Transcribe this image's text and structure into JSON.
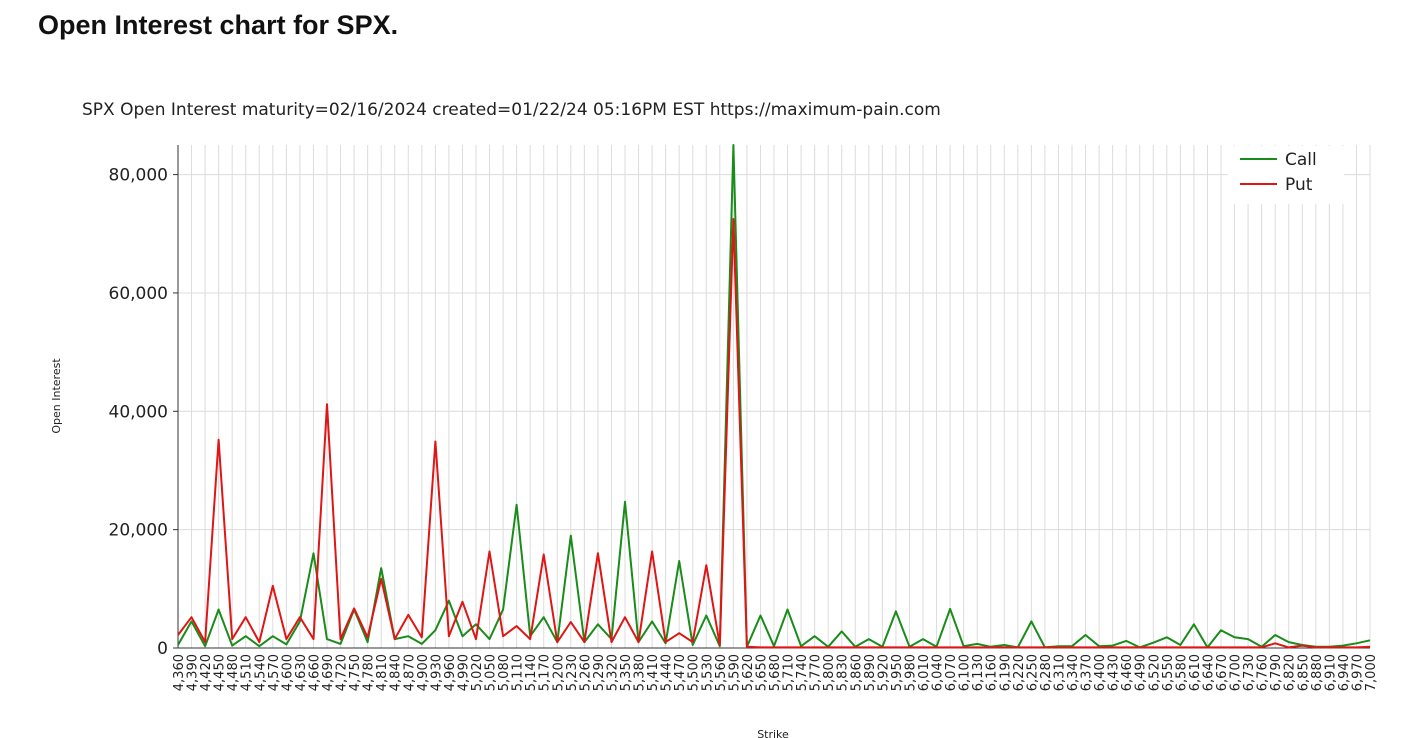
{
  "page": {
    "heading": "Open Interest chart for SPX."
  },
  "chart_data": {
    "type": "line",
    "title": "SPX Open Interest maturity=02/16/2024 created=01/22/24 05:16PM EST https://maximum-pain.com",
    "xlabel": "Strike",
    "ylabel": "Open Interest",
    "ylim": [
      0,
      85000
    ],
    "y_ticks": [
      "0",
      "20,000",
      "40,000",
      "60,000",
      "80,000"
    ],
    "y_tick_values": [
      0,
      20000,
      40000,
      60000,
      80000
    ],
    "grid": true,
    "legend_position": "top-right",
    "x_ticks": [
      "4,360",
      "4,390",
      "4,420",
      "4,450",
      "4,480",
      "4,510",
      "4,540",
      "4,570",
      "4,600",
      "4,630",
      "4,660",
      "4,690",
      "4,720",
      "4,750",
      "4,780",
      "4,810",
      "4,840",
      "4,870",
      "4,900",
      "4,930",
      "4,960",
      "4,990",
      "5,020",
      "5,050",
      "5,080",
      "5,110",
      "5,140",
      "5,170",
      "5,200",
      "5,230",
      "5,260",
      "5,290",
      "5,320",
      "5,350",
      "5,380",
      "5,410",
      "5,440",
      "5,470",
      "5,500",
      "5,530",
      "5,560",
      "5,590",
      "5,620",
      "5,650",
      "5,680",
      "5,710",
      "5,740",
      "5,770",
      "5,800",
      "5,830",
      "5,860",
      "5,890",
      "5,920",
      "5,950",
      "5,980",
      "6,010",
      "6,040",
      "6,070",
      "6,100",
      "6,130",
      "6,160",
      "6,190",
      "6,220",
      "6,250",
      "6,280",
      "6,310",
      "6,340",
      "6,370",
      "6,400",
      "6,430",
      "6,460",
      "6,490",
      "6,520",
      "6,550",
      "6,580",
      "6,610",
      "6,640",
      "6,670",
      "6,700",
      "6,730",
      "6,760",
      "6,790",
      "6,820",
      "6,850",
      "6,880",
      "6,910",
      "6,940",
      "6,970",
      "7,000"
    ],
    "series": [
      {
        "name": "Call",
        "color": "#1a8c1a",
        "points": [
          [
            0,
            500
          ],
          [
            1,
            4500
          ],
          [
            2,
            300
          ],
          [
            3,
            6500
          ],
          [
            4,
            400
          ],
          [
            5,
            2000
          ],
          [
            6,
            300
          ],
          [
            7,
            2000
          ],
          [
            8,
            600
          ],
          [
            9,
            4500
          ],
          [
            10,
            16000
          ],
          [
            11,
            1500
          ],
          [
            12,
            700
          ],
          [
            13,
            6500
          ],
          [
            14,
            1000
          ],
          [
            15,
            13500
          ],
          [
            16,
            1500
          ],
          [
            17,
            2000
          ],
          [
            18,
            700
          ],
          [
            19,
            3000
          ],
          [
            20,
            8000
          ],
          [
            21,
            2000
          ],
          [
            22,
            4000
          ],
          [
            23,
            1500
          ],
          [
            24,
            6500
          ],
          [
            25,
            24200
          ],
          [
            26,
            2000
          ],
          [
            27,
            5200
          ],
          [
            28,
            1000
          ],
          [
            29,
            19000
          ],
          [
            30,
            1000
          ],
          [
            31,
            4000
          ],
          [
            32,
            1500
          ],
          [
            33,
            24700
          ],
          [
            34,
            1000
          ],
          [
            35,
            4500
          ],
          [
            36,
            800
          ],
          [
            37,
            14700
          ],
          [
            38,
            500
          ],
          [
            39,
            5500
          ],
          [
            40,
            300
          ],
          [
            41,
            85000
          ],
          [
            42,
            200
          ],
          [
            43,
            5500
          ],
          [
            44,
            300
          ],
          [
            45,
            6500
          ],
          [
            46,
            300
          ],
          [
            47,
            2000
          ],
          [
            48,
            200
          ],
          [
            49,
            2800
          ],
          [
            50,
            200
          ],
          [
            51,
            1500
          ],
          [
            52,
            200
          ],
          [
            53,
            6200
          ],
          [
            54,
            200
          ],
          [
            55,
            1500
          ],
          [
            56,
            200
          ],
          [
            57,
            6600
          ],
          [
            58,
            300
          ],
          [
            59,
            700
          ],
          [
            60,
            200
          ],
          [
            61,
            500
          ],
          [
            62,
            100
          ],
          [
            63,
            4500
          ],
          [
            64,
            100
          ],
          [
            65,
            300
          ],
          [
            66,
            300
          ],
          [
            67,
            2200
          ],
          [
            68,
            300
          ],
          [
            69,
            400
          ],
          [
            70,
            1200
          ],
          [
            71,
            100
          ],
          [
            72,
            900
          ],
          [
            73,
            1800
          ],
          [
            74,
            500
          ],
          [
            75,
            4000
          ],
          [
            76,
            100
          ],
          [
            77,
            3000
          ],
          [
            78,
            1800
          ],
          [
            79,
            1500
          ],
          [
            80,
            200
          ],
          [
            81,
            2200
          ],
          [
            82,
            1000
          ],
          [
            83,
            500
          ],
          [
            84,
            200
          ],
          [
            85,
            200
          ],
          [
            86,
            400
          ],
          [
            87,
            800
          ],
          [
            88,
            1300
          ]
        ]
      },
      {
        "name": "Put",
        "color": "#e01515",
        "points": [
          [
            0,
            2200
          ],
          [
            1,
            5200
          ],
          [
            2,
            1000
          ],
          [
            3,
            35200
          ],
          [
            4,
            1500
          ],
          [
            5,
            5200
          ],
          [
            6,
            1000
          ],
          [
            7,
            10500
          ],
          [
            8,
            1500
          ],
          [
            9,
            5200
          ],
          [
            10,
            1500
          ],
          [
            11,
            41200
          ],
          [
            12,
            1500
          ],
          [
            13,
            6700
          ],
          [
            14,
            1800
          ],
          [
            15,
            11700
          ],
          [
            16,
            1500
          ],
          [
            17,
            5600
          ],
          [
            18,
            1800
          ],
          [
            19,
            34900
          ],
          [
            20,
            2000
          ],
          [
            21,
            7800
          ],
          [
            22,
            1500
          ],
          [
            23,
            16300
          ],
          [
            24,
            2000
          ],
          [
            25,
            3700
          ],
          [
            26,
            1500
          ],
          [
            27,
            15800
          ],
          [
            28,
            1000
          ],
          [
            29,
            4400
          ],
          [
            30,
            1000
          ],
          [
            31,
            16000
          ],
          [
            32,
            1000
          ],
          [
            33,
            5200
          ],
          [
            34,
            1000
          ],
          [
            35,
            16300
          ],
          [
            36,
            1000
          ],
          [
            37,
            2500
          ],
          [
            38,
            1000
          ],
          [
            39,
            14000
          ],
          [
            40,
            500
          ],
          [
            41,
            72500
          ],
          [
            42,
            200
          ],
          [
            43,
            100
          ],
          [
            44,
            100
          ],
          [
            45,
            100
          ],
          [
            46,
            100
          ],
          [
            47,
            100
          ],
          [
            48,
            100
          ],
          [
            49,
            100
          ],
          [
            50,
            100
          ],
          [
            51,
            100
          ],
          [
            52,
            100
          ],
          [
            53,
            100
          ],
          [
            54,
            100
          ],
          [
            55,
            100
          ],
          [
            56,
            100
          ],
          [
            57,
            100
          ],
          [
            58,
            100
          ],
          [
            59,
            100
          ],
          [
            60,
            100
          ],
          [
            61,
            100
          ],
          [
            62,
            100
          ],
          [
            63,
            100
          ],
          [
            64,
            100
          ],
          [
            65,
            100
          ],
          [
            66,
            100
          ],
          [
            67,
            100
          ],
          [
            68,
            100
          ],
          [
            69,
            100
          ],
          [
            70,
            100
          ],
          [
            71,
            100
          ],
          [
            72,
            100
          ],
          [
            73,
            100
          ],
          [
            74,
            100
          ],
          [
            75,
            100
          ],
          [
            76,
            100
          ],
          [
            77,
            100
          ],
          [
            78,
            100
          ],
          [
            79,
            100
          ],
          [
            80,
            100
          ],
          [
            81,
            800
          ],
          [
            82,
            100
          ],
          [
            83,
            400
          ],
          [
            84,
            100
          ],
          [
            85,
            100
          ],
          [
            86,
            100
          ],
          [
            87,
            100
          ],
          [
            88,
            200
          ]
        ]
      }
    ]
  }
}
